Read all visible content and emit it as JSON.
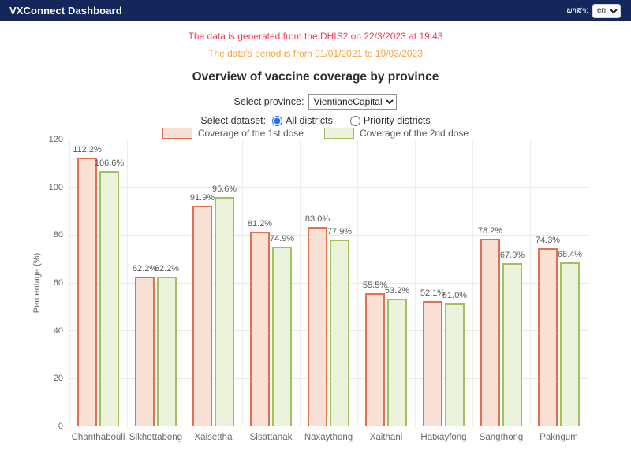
{
  "navbar": {
    "brand": "VXConnect Dashboard",
    "language_label": "ພາສາ:",
    "language_value": "en"
  },
  "notices": {
    "generated": "The data is generated from the DHIS2 on 22/3/2023 at 19:43",
    "period": "The data's period is from 01/01/2021 to 19/03/2023"
  },
  "page_title": "Overview of vaccine coverage by province",
  "controls": {
    "province_label": "Select province:",
    "province_value": "VientianeCapital",
    "dataset_label": "Select dataset:",
    "dataset_options": [
      {
        "label": "All districts",
        "selected": true
      },
      {
        "label": "Priority districts",
        "selected": false
      }
    ]
  },
  "colors": {
    "navbar_bg": "#14265a",
    "notice_generated": "#e94256",
    "notice_period": "#f6a53d",
    "radio_accent": "#1a73e8",
    "dose1_fill": "#f9e0d5",
    "dose1_border": "#e4704d",
    "dose2_fill": "#ebf3dc",
    "dose2_border": "#a2c05d"
  },
  "chart_data": {
    "type": "bar",
    "title": "",
    "categories": [
      "Chanthabouli",
      "Sikhottabong",
      "Xaisettha",
      "Sisattanak",
      "Naxaythong",
      "Xaithani",
      "Hatxayfong",
      "Sangthong",
      "Pakngum"
    ],
    "series": [
      {
        "name": "Coverage of the 1st dose",
        "values": [
          112.2,
          62.2,
          91.9,
          81.2,
          83.0,
          55.5,
          52.1,
          78.2,
          74.3
        ],
        "fill": "#f9e0d5",
        "border": "#e4704d"
      },
      {
        "name": "Coverage of the 2nd dose",
        "values": [
          106.6,
          62.2,
          95.6,
          74.9,
          77.9,
          53.2,
          51.0,
          67.9,
          68.4
        ],
        "fill": "#ebf3dc",
        "border": "#a2c05d"
      }
    ],
    "xlabel": "",
    "ylabel": "Percentage (%)",
    "ylim": [
      0,
      120
    ],
    "yticks": [
      0,
      20,
      40,
      60,
      80,
      100,
      120
    ],
    "grid": true,
    "legend_position": "top",
    "value_suffix": "%",
    "value_decimals": 1
  }
}
